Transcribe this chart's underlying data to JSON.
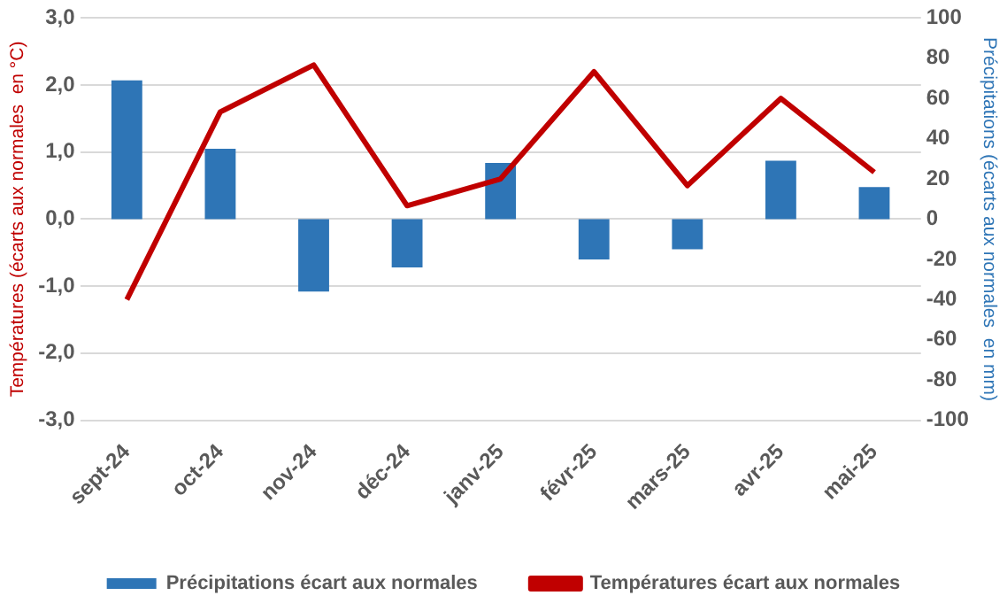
{
  "chart_data": {
    "type": "bar",
    "categories": [
      "sept-24",
      "oct-24",
      "nov-24",
      "déc-24",
      "janv-25",
      "févr-25",
      "mars-25",
      "avr-25",
      "mai-25"
    ],
    "series": [
      {
        "name": "Précipitations écart aux normales",
        "axis": "y2",
        "color": "#2e75b6",
        "values": [
          69,
          35,
          -36,
          -24,
          28,
          -20,
          -15,
          29,
          16
        ]
      },
      {
        "name": "Températures écart aux normales",
        "type": "line",
        "axis": "y",
        "color": "#c00000",
        "values": [
          -1.2,
          1.6,
          2.3,
          0.2,
          0.6,
          2.2,
          0.5,
          1.8,
          0.7
        ]
      }
    ],
    "ylabel": "Températures (écarts aux normales  en °C)",
    "y2label": "Précipitations (écarts aux normales  en mm)",
    "ylim": [
      -3,
      3
    ],
    "yticks": [
      {
        "value": -3,
        "label": "-3,0"
      },
      {
        "value": -2,
        "label": "-2,0"
      },
      {
        "value": -1,
        "label": "-1,0"
      },
      {
        "value": 0,
        "label": "0,0"
      },
      {
        "value": 1,
        "label": "1,0"
      },
      {
        "value": 2,
        "label": "2,0"
      },
      {
        "value": 3,
        "label": "3,0"
      }
    ],
    "y2lim": [
      -100,
      100
    ],
    "y2ticks": [
      -100,
      -80,
      -60,
      -40,
      -20,
      0,
      20,
      40,
      60,
      80,
      100
    ],
    "grid": "y",
    "legend": "bottom",
    "marker": "none"
  }
}
